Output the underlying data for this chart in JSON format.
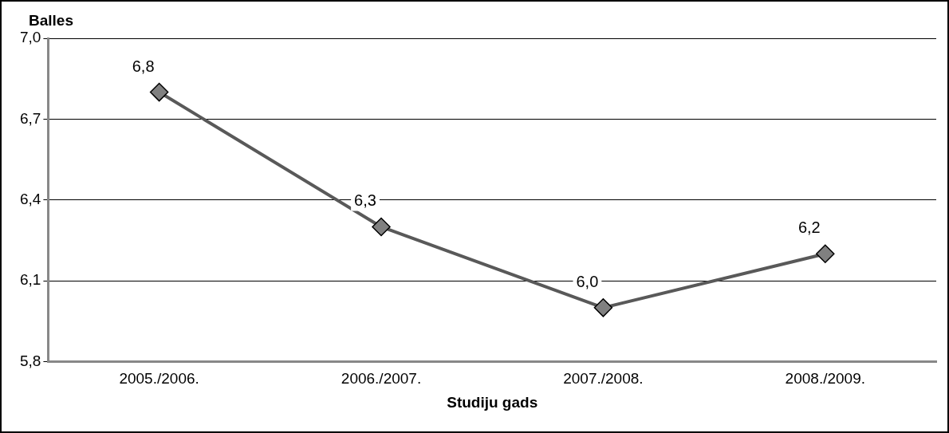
{
  "chart_data": {
    "type": "line",
    "ylabel": "Balles",
    "xlabel": "Studiju gads",
    "categories": [
      "2005./2006.",
      "2006./2007.",
      "2007./2008.",
      "2008./2009."
    ],
    "series": [
      {
        "color": "#595959",
        "values": [
          6.8,
          6.3,
          6.0,
          6.2
        ],
        "value_labels": [
          "6,8",
          "6,3",
          "6,0",
          "6,2"
        ]
      }
    ],
    "ylim": [
      5.8,
      7.0
    ],
    "yticks": [
      {
        "value": 5.8,
        "label": "5,8"
      },
      {
        "value": 6.1,
        "label": "6,1"
      },
      {
        "value": 6.4,
        "label": "6,4"
      },
      {
        "value": 6.7,
        "label": "6,7"
      },
      {
        "value": 7.0,
        "label": "7,0"
      }
    ],
    "grid": "y",
    "legend": false,
    "marker": "diamond",
    "line_style": "solid"
  }
}
